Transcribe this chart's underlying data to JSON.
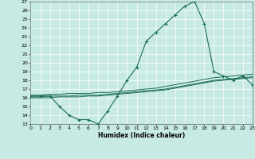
{
  "xlabel": "Humidex (Indice chaleur)",
  "ylabel": "",
  "background_color": "#c8eae4",
  "line_color": "#1a6b5a",
  "xlim": [
    0,
    23
  ],
  "ylim": [
    13,
    27
  ],
  "yticks": [
    13,
    14,
    15,
    16,
    17,
    18,
    19,
    20,
    21,
    22,
    23,
    24,
    25,
    26,
    27
  ],
  "xticks": [
    0,
    1,
    2,
    3,
    4,
    5,
    6,
    7,
    8,
    9,
    10,
    11,
    12,
    13,
    14,
    15,
    16,
    17,
    18,
    19,
    20,
    21,
    22,
    23
  ],
  "main_x": [
    0,
    1,
    2,
    3,
    4,
    5,
    6,
    7,
    8,
    9,
    10,
    11,
    12,
    13,
    14,
    15,
    16,
    17,
    18,
    19,
    20,
    21,
    22,
    23
  ],
  "main_y": [
    16.2,
    16.2,
    16.2,
    15.0,
    14.0,
    13.5,
    13.5,
    13.0,
    14.5,
    16.2,
    18.0,
    19.5,
    22.5,
    23.5,
    24.5,
    25.5,
    26.5,
    27.0,
    24.5,
    19.0,
    18.5,
    18.0,
    18.5,
    17.5
  ],
  "line2_x": [
    0,
    1,
    2,
    3,
    4,
    5,
    6,
    7,
    8,
    9,
    10,
    11,
    12,
    13,
    14,
    15,
    16,
    17,
    18,
    19,
    20,
    21,
    22,
    23
  ],
  "line2_y": [
    16.3,
    16.3,
    16.4,
    16.4,
    16.5,
    16.5,
    16.5,
    16.6,
    16.6,
    16.7,
    16.8,
    16.9,
    17.0,
    17.1,
    17.3,
    17.5,
    17.7,
    17.9,
    18.1,
    18.3,
    18.4,
    18.5,
    18.6,
    18.7
  ],
  "line3_x": [
    0,
    1,
    2,
    3,
    4,
    5,
    6,
    7,
    8,
    9,
    10,
    11,
    12,
    13,
    14,
    15,
    16,
    17,
    18,
    19,
    20,
    21,
    22,
    23
  ],
  "line3_y": [
    16.1,
    16.1,
    16.2,
    16.2,
    16.2,
    16.3,
    16.3,
    16.3,
    16.4,
    16.5,
    16.6,
    16.7,
    16.8,
    16.9,
    17.0,
    17.2,
    17.4,
    17.6,
    17.8,
    18.0,
    18.1,
    18.2,
    18.3,
    18.4
  ],
  "line4_x": [
    0,
    1,
    2,
    3,
    4,
    5,
    6,
    7,
    8,
    9,
    10,
    11,
    12,
    13,
    14,
    15,
    16,
    17,
    18,
    19,
    20,
    21,
    22,
    23
  ],
  "line4_y": [
    16.0,
    16.0,
    16.0,
    16.1,
    16.1,
    16.1,
    16.2,
    16.2,
    16.3,
    16.4,
    16.5,
    16.6,
    16.7,
    16.8,
    16.9,
    17.1,
    17.3,
    17.5,
    17.7,
    17.9,
    18.0,
    18.1,
    18.2,
    18.3
  ]
}
